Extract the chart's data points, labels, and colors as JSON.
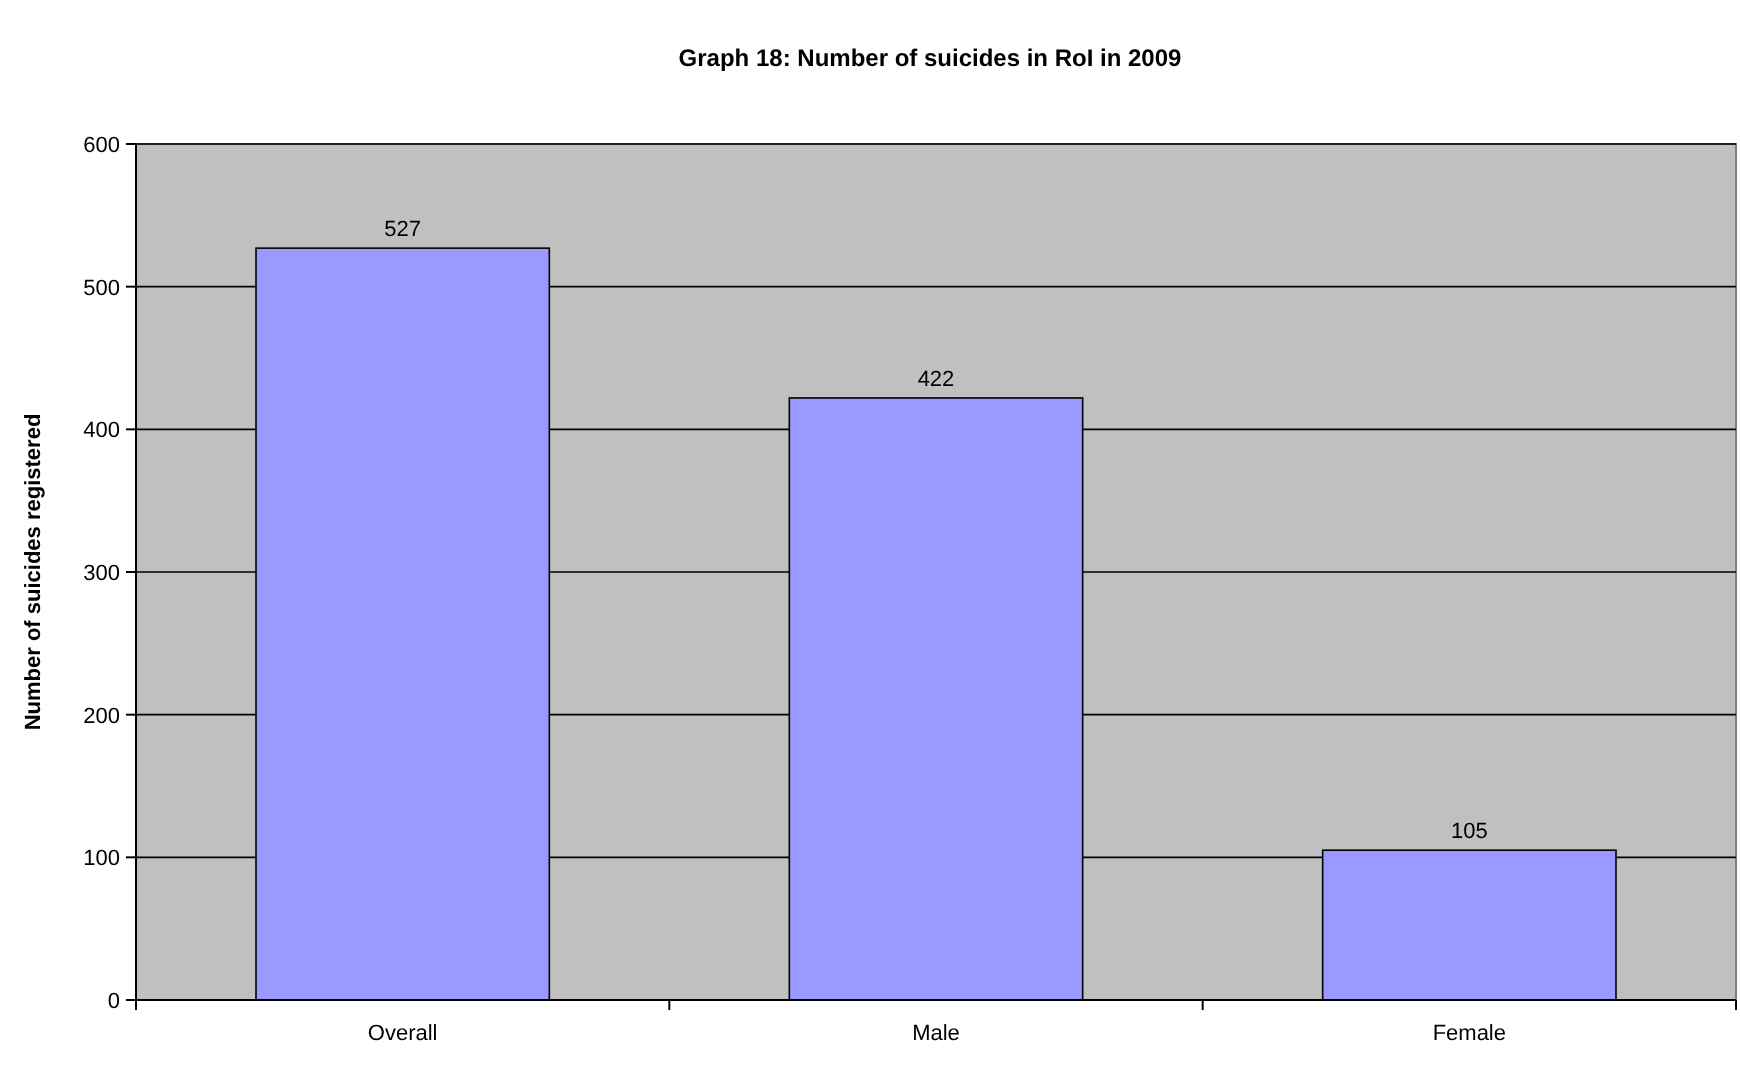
{
  "chart_data": {
    "type": "bar",
    "title": "Graph 18: Number of suicides in RoI in 2009",
    "ylabel": "Number of suicides registered",
    "categories": [
      "Overall",
      "Male",
      "Female"
    ],
    "values": [
      527,
      422,
      105
    ],
    "color": "#9999ff",
    "ylim": [
      0,
      600
    ],
    "yticks": [
      0,
      100,
      200,
      300,
      400,
      500,
      600
    ],
    "grid": "y",
    "data_labels": true
  }
}
